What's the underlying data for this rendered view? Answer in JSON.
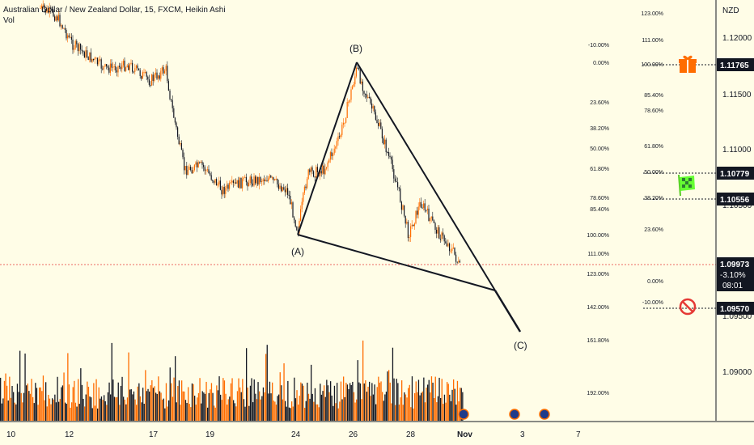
{
  "header": {
    "symbol_line": "Australian Dollar / New Zealand Dollar, 15, FXCM, Heikin Ashi",
    "volume_label": "Vol"
  },
  "price_axis": {
    "currency": "NZD",
    "ticks": [
      "1.12000",
      "1.11500",
      "1.11000",
      "1.10500",
      "1.09500",
      "1.09000"
    ]
  },
  "price_labels": [
    {
      "value": "1.11765",
      "icon": "gift-icon",
      "color": "#ff6d00"
    },
    {
      "value": "1.10779",
      "icon": "checkered-flag-icon",
      "color": "#66ff33"
    },
    {
      "value": "1.10556",
      "icon": "",
      "color": ""
    },
    {
      "value": "1.09570",
      "icon": "no-entry-icon",
      "color": "#e53935"
    }
  ],
  "last_price": {
    "value": "1.09973",
    "change": "-3.10%",
    "countdown": "08:01"
  },
  "time_axis": {
    "ticks": [
      "10",
      "12",
      "17",
      "19",
      "24",
      "26",
      "28",
      "Nov",
      "3",
      "7"
    ]
  },
  "fib_left": [
    "-10.00%",
    "0.00%",
    "23.60%",
    "38.20%",
    "50.00%",
    "61.80%",
    "78.60%",
    "85.40%",
    "100.00%",
    "111.00%",
    "123.00%",
    "142.00%",
    "161.80%",
    "192.00%"
  ],
  "fib_right": [
    "123.00%",
    "111.00%",
    "100.00%",
    "85.40%",
    "78.60%",
    "61.80%",
    "50.00%",
    "38.20%",
    "23.60%",
    "0.00%",
    "-10.00%"
  ],
  "pattern_points": [
    "(A)",
    "(B)",
    "(C)"
  ],
  "colors": {
    "up": "#ff6d00",
    "down": "#131722",
    "background": "#fffde7"
  },
  "chart_data": {
    "type": "candlestick",
    "title": "Australian Dollar / New Zealand Dollar, 15, FXCM, Heikin Ashi",
    "ylim": [
      1.088,
      1.124
    ],
    "candles_approx_path": [
      {
        "x": "10",
        "close": 1.1225
      },
      {
        "x": "12",
        "close": 1.1195
      },
      {
        "x": "17",
        "close": 1.114
      },
      {
        "x": "19",
        "close": 1.1062
      },
      {
        "x": "24",
        "close": 1.104
      },
      {
        "x": "26",
        "close": 1.1175
      },
      {
        "x": "28",
        "close": 1.104
      },
      {
        "x": "Nov",
        "close": 1.0997
      }
    ],
    "grid": false
  }
}
